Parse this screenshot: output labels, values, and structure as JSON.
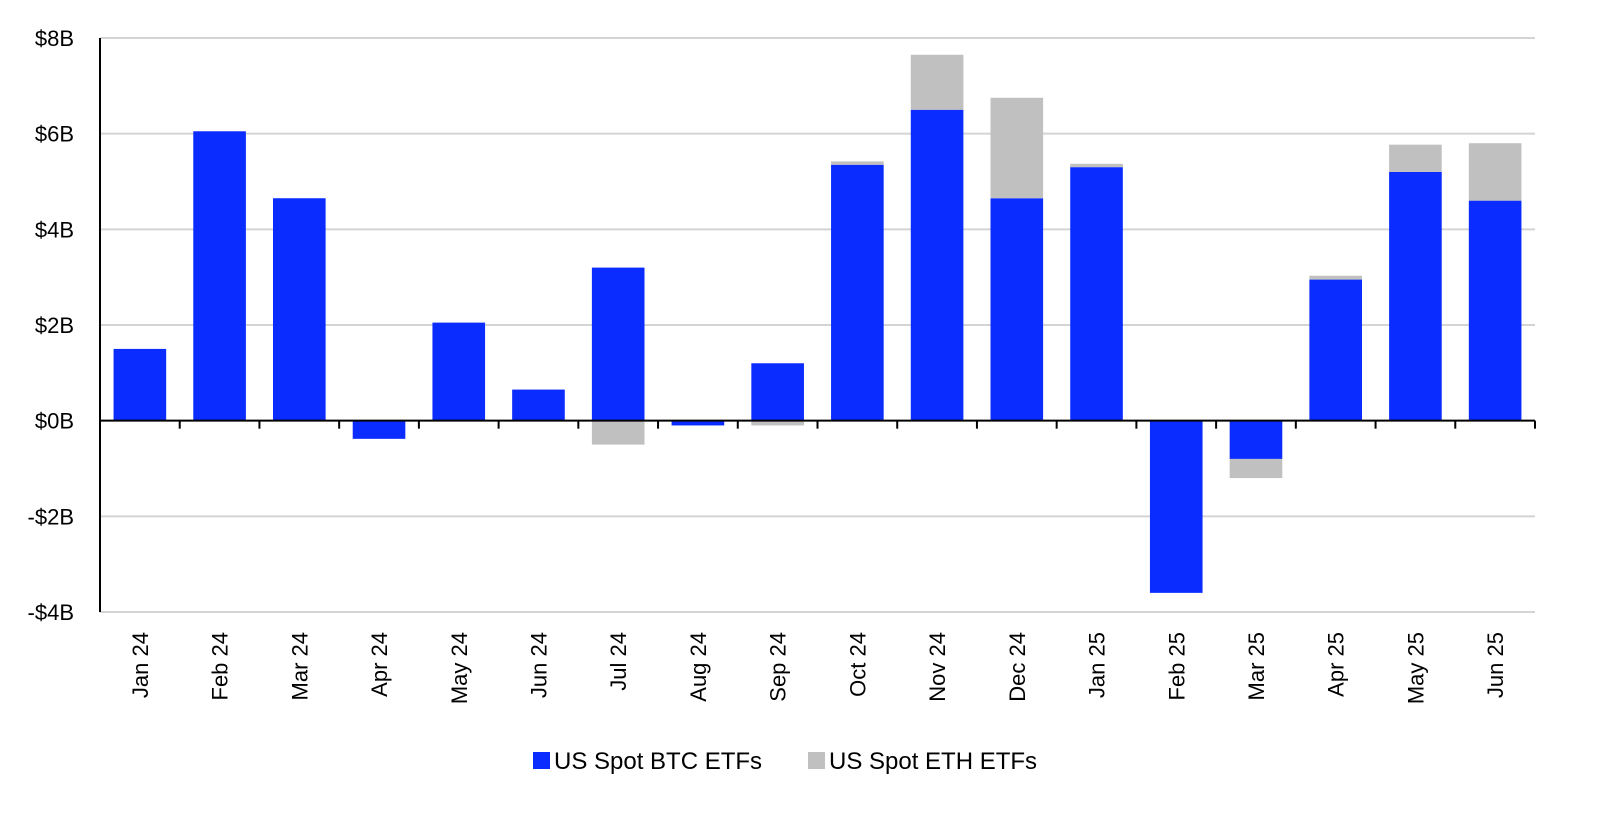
{
  "chart_data": {
    "type": "bar",
    "stacked": true,
    "categories": [
      "Jan 24",
      "Feb 24",
      "Mar 24",
      "Apr 24",
      "May 24",
      "Jun 24",
      "Jul 24",
      "Aug 24",
      "Sep 24",
      "Oct 24",
      "Nov 24",
      "Dec 24",
      "Jan 25",
      "Feb 25",
      "Mar 25",
      "Apr 25",
      "May 25",
      "Jun 25"
    ],
    "series": [
      {
        "name": "US Spot BTC ETFs",
        "color": "#0a2cff",
        "values": [
          1.5,
          6.05,
          4.65,
          -0.38,
          2.05,
          0.65,
          3.2,
          -0.1,
          1.2,
          5.35,
          6.5,
          4.65,
          5.3,
          -3.6,
          -0.8,
          2.95,
          5.2,
          4.6
        ]
      },
      {
        "name": "US Spot ETH ETFs",
        "color": "#c0c0c0",
        "values": [
          0,
          0,
          0,
          0,
          0,
          0,
          -0.5,
          0,
          -0.1,
          0.07,
          1.15,
          2.1,
          0.07,
          0,
          -0.4,
          0.08,
          0.57,
          1.2
        ]
      }
    ],
    "y_ticks": [
      {
        "value": 8,
        "label": "$8B"
      },
      {
        "value": 6,
        "label": "$6B"
      },
      {
        "value": 4,
        "label": "$4B"
      },
      {
        "value": 2,
        "label": "$2B"
      },
      {
        "value": 0,
        "label": "$0B"
      },
      {
        "value": -2,
        "label": "-$2B"
      },
      {
        "value": -4,
        "label": "-$4B"
      }
    ],
    "ylim": [
      -4,
      8
    ],
    "grid": true,
    "legend_position": "bottom-center"
  }
}
